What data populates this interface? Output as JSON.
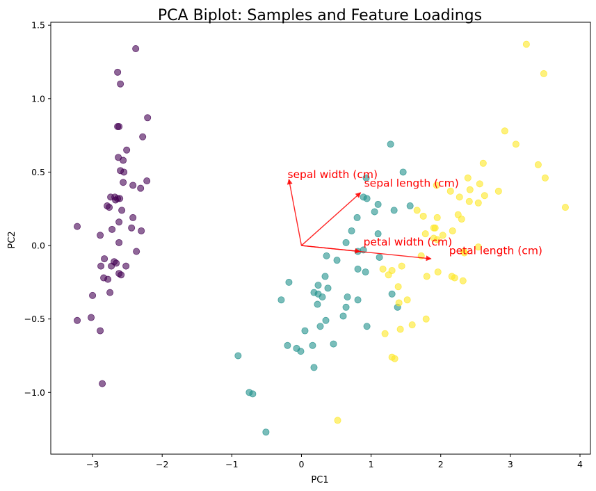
{
  "chart_data": {
    "type": "scatter",
    "title": "PCA Biplot: Samples and Feature Loadings",
    "xlabel": "PC1",
    "ylabel": "PC2",
    "xlim": [
      -3.6,
      4.15
    ],
    "ylim": [
      -1.42,
      1.52
    ],
    "xticks": [
      -3,
      -2,
      -1,
      0,
      1,
      2,
      3,
      4
    ],
    "yticks": [
      -1.0,
      -0.5,
      0.0,
      0.5,
      1.0,
      1.5
    ],
    "xtick_labels": [
      "−3",
      "−2",
      "−1",
      "0",
      "1",
      "2",
      "3",
      "4"
    ],
    "ytick_labels": [
      "−1.0",
      "−0.5",
      "0.0",
      "0.5",
      "1.0",
      "1.5"
    ],
    "grid": false,
    "colors": {
      "setosa_class": "#440154",
      "versicolor_class": "#21918c",
      "virginica_class": "#fde725",
      "loadings": "#ff0000"
    },
    "series": [
      {
        "color": "#440154",
        "points": [
          [
            -2.38,
            1.34
          ],
          [
            -2.64,
            1.18
          ],
          [
            -2.6,
            1.1
          ],
          [
            -2.21,
            0.87
          ],
          [
            -2.64,
            0.81
          ],
          [
            -2.62,
            0.81
          ],
          [
            -2.28,
            0.74
          ],
          [
            -2.51,
            0.65
          ],
          [
            -2.56,
            0.58
          ],
          [
            -2.63,
            0.6
          ],
          [
            -2.6,
            0.51
          ],
          [
            -2.55,
            0.5
          ],
          [
            -2.42,
            0.41
          ],
          [
            -2.56,
            0.43
          ],
          [
            -2.31,
            0.39
          ],
          [
            -2.22,
            0.44
          ],
          [
            -2.74,
            0.33
          ],
          [
            -2.68,
            0.33
          ],
          [
            -2.64,
            0.32
          ],
          [
            -2.61,
            0.32
          ],
          [
            -2.67,
            0.31
          ],
          [
            -2.79,
            0.27
          ],
          [
            -2.76,
            0.26
          ],
          [
            -2.58,
            0.24
          ],
          [
            -2.62,
            0.16
          ],
          [
            -2.42,
            0.19
          ],
          [
            -2.44,
            0.12
          ],
          [
            -2.72,
            0.11
          ],
          [
            -2.3,
            0.1
          ],
          [
            -2.89,
            0.07
          ],
          [
            -3.22,
            0.13
          ],
          [
            -2.62,
            0.02
          ],
          [
            -2.37,
            -0.04
          ],
          [
            -2.83,
            -0.09
          ],
          [
            -2.69,
            -0.11
          ],
          [
            -2.66,
            -0.12
          ],
          [
            -2.88,
            -0.14
          ],
          [
            -2.73,
            -0.14
          ],
          [
            -2.52,
            -0.14
          ],
          [
            -2.62,
            -0.19
          ],
          [
            -2.59,
            -0.2
          ],
          [
            -2.84,
            -0.22
          ],
          [
            -2.78,
            -0.23
          ],
          [
            -2.75,
            -0.32
          ],
          [
            -3.0,
            -0.34
          ],
          [
            -3.02,
            -0.49
          ],
          [
            -3.22,
            -0.51
          ],
          [
            -2.89,
            -0.58
          ],
          [
            -2.86,
            -0.94
          ]
        ]
      },
      {
        "color": "#21918c",
        "points": [
          [
            1.28,
            0.69
          ],
          [
            1.46,
            0.5
          ],
          [
            0.93,
            0.46
          ],
          [
            0.89,
            0.33
          ],
          [
            0.94,
            0.32
          ],
          [
            1.1,
            0.28
          ],
          [
            1.56,
            0.27
          ],
          [
            1.33,
            0.24
          ],
          [
            1.05,
            0.23
          ],
          [
            0.8,
            0.19
          ],
          [
            0.72,
            0.1
          ],
          [
            1.1,
            0.08
          ],
          [
            0.64,
            0.02
          ],
          [
            0.89,
            -0.03
          ],
          [
            0.81,
            -0.04
          ],
          [
            1.12,
            -0.08
          ],
          [
            0.36,
            -0.07
          ],
          [
            0.51,
            -0.1
          ],
          [
            0.81,
            -0.16
          ],
          [
            0.92,
            -0.18
          ],
          [
            0.34,
            -0.21
          ],
          [
            -0.18,
            -0.25
          ],
          [
            0.24,
            -0.27
          ],
          [
            0.38,
            -0.29
          ],
          [
            0.18,
            -0.32
          ],
          [
            0.24,
            -0.33
          ],
          [
            0.3,
            -0.35
          ],
          [
            0.66,
            -0.35
          ],
          [
            -0.29,
            -0.37
          ],
          [
            0.81,
            -0.37
          ],
          [
            1.3,
            -0.33
          ],
          [
            0.23,
            -0.4
          ],
          [
            0.64,
            -0.42
          ],
          [
            1.38,
            -0.42
          ],
          [
            0.6,
            -0.48
          ],
          [
            0.35,
            -0.51
          ],
          [
            0.27,
            -0.55
          ],
          [
            0.05,
            -0.58
          ],
          [
            0.94,
            -0.55
          ],
          [
            -0.2,
            -0.68
          ],
          [
            0.16,
            -0.68
          ],
          [
            0.46,
            -0.67
          ],
          [
            -0.07,
            -0.7
          ],
          [
            -0.01,
            -0.72
          ],
          [
            -0.91,
            -0.75
          ],
          [
            0.18,
            -0.83
          ],
          [
            -0.75,
            -1.0
          ],
          [
            -0.7,
            -1.01
          ],
          [
            -0.51,
            -1.27
          ]
        ]
      },
      {
        "color": "#fde725",
        "points": [
          [
            3.23,
            1.37
          ],
          [
            3.48,
            1.17
          ],
          [
            2.92,
            0.78
          ],
          [
            3.08,
            0.69
          ],
          [
            2.61,
            0.56
          ],
          [
            3.4,
            0.55
          ],
          [
            3.5,
            0.46
          ],
          [
            2.39,
            0.46
          ],
          [
            2.56,
            0.42
          ],
          [
            2.42,
            0.38
          ],
          [
            2.14,
            0.37
          ],
          [
            2.83,
            0.37
          ],
          [
            2.63,
            0.34
          ],
          [
            2.27,
            0.33
          ],
          [
            2.41,
            0.3
          ],
          [
            2.54,
            0.29
          ],
          [
            1.94,
            0.41
          ],
          [
            3.79,
            0.26
          ],
          [
            1.66,
            0.24
          ],
          [
            2.25,
            0.21
          ],
          [
            1.75,
            0.2
          ],
          [
            1.95,
            0.19
          ],
          [
            2.3,
            0.18
          ],
          [
            1.9,
            0.12
          ],
          [
            1.92,
            0.12
          ],
          [
            2.17,
            0.1
          ],
          [
            2.03,
            0.07
          ],
          [
            1.78,
            0.08
          ],
          [
            1.9,
            0.05
          ],
          [
            1.95,
            0.04
          ],
          [
            2.54,
            -0.01
          ],
          [
            2.33,
            -0.04
          ],
          [
            2.34,
            -0.05
          ],
          [
            1.72,
            -0.07
          ],
          [
            1.44,
            -0.14
          ],
          [
            1.17,
            -0.16
          ],
          [
            1.3,
            -0.17
          ],
          [
            1.96,
            -0.18
          ],
          [
            1.25,
            -0.2
          ],
          [
            1.8,
            -0.21
          ],
          [
            2.16,
            -0.21
          ],
          [
            2.2,
            -0.22
          ],
          [
            2.32,
            -0.24
          ],
          [
            1.39,
            -0.28
          ],
          [
            1.52,
            -0.37
          ],
          [
            1.4,
            -0.39
          ],
          [
            1.79,
            -0.5
          ],
          [
            1.59,
            -0.54
          ],
          [
            1.42,
            -0.57
          ],
          [
            1.2,
            -0.6
          ],
          [
            1.3,
            -0.76
          ],
          [
            1.34,
            -0.77
          ],
          [
            0.52,
            -1.19
          ]
        ]
      }
    ],
    "loadings": [
      {
        "label": "sepal length (cm)",
        "dx": 0.85,
        "dy": 0.36,
        "label_x": 0.9,
        "label_y": 0.4
      },
      {
        "label": "sepal width (cm)",
        "dx": -0.18,
        "dy": 0.45,
        "label_x": -0.2,
        "label_y": 0.46
      },
      {
        "label": "petal length (cm)",
        "dx": 1.86,
        "dy": -0.09,
        "label_x": 2.12,
        "label_y": -0.06
      },
      {
        "label": "petal width (cm)",
        "dx": 0.84,
        "dy": -0.04,
        "label_x": 0.89,
        "label_y": 0.0
      }
    ]
  }
}
